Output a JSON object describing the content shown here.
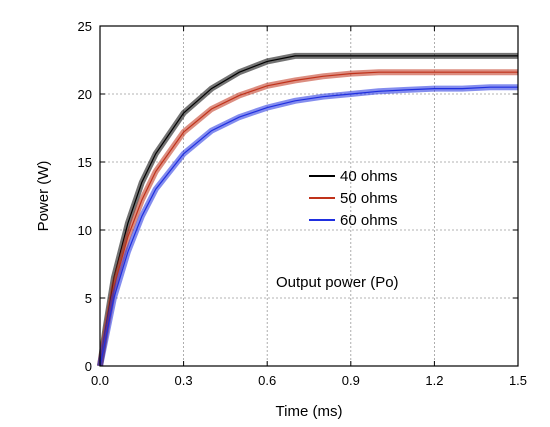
{
  "chart_data": {
    "type": "line",
    "title": "",
    "xlabel": "Time (ms)",
    "ylabel": "Power (W)",
    "xlim": [
      0,
      1.5
    ],
    "ylim": [
      0,
      25
    ],
    "xticks": [
      "0.0",
      "0.3",
      "0.6",
      "0.9",
      "1.2",
      "1.5"
    ],
    "yticks": [
      "0",
      "5",
      "10",
      "15",
      "20",
      "25"
    ],
    "grid": true,
    "legend_position": "center-right",
    "annotation": "Output power (Po)",
    "series": [
      {
        "name": "40 ohms",
        "color": "#000000",
        "x": [
          0.0,
          0.02,
          0.05,
          0.1,
          0.15,
          0.2,
          0.3,
          0.4,
          0.5,
          0.6,
          0.7,
          0.8,
          0.9,
          1.0,
          1.1,
          1.2,
          1.3,
          1.4,
          1.5
        ],
        "values": [
          0,
          2.8,
          6.5,
          10.5,
          13.5,
          15.6,
          18.6,
          20.4,
          21.6,
          22.4,
          22.8,
          22.8,
          22.8,
          22.8,
          22.8,
          22.8,
          22.8,
          22.8,
          22.8
        ]
      },
      {
        "name": "50 ohms",
        "color": "#c0321a",
        "x": [
          0.0,
          0.02,
          0.05,
          0.1,
          0.15,
          0.2,
          0.3,
          0.4,
          0.5,
          0.6,
          0.7,
          0.8,
          0.9,
          1.0,
          1.1,
          1.2,
          1.3,
          1.4,
          1.5
        ],
        "values": [
          0,
          2.4,
          5.8,
          9.5,
          12.2,
          14.3,
          17.2,
          18.9,
          19.9,
          20.6,
          21.0,
          21.3,
          21.5,
          21.6,
          21.6,
          21.6,
          21.6,
          21.6,
          21.6
        ]
      },
      {
        "name": "60 ohms",
        "color": "#1f2fe0",
        "x": [
          0.0,
          0.02,
          0.05,
          0.1,
          0.15,
          0.2,
          0.3,
          0.4,
          0.5,
          0.6,
          0.7,
          0.8,
          0.9,
          1.0,
          1.1,
          1.2,
          1.3,
          1.4,
          1.5
        ],
        "values": [
          0,
          2.0,
          5.0,
          8.4,
          11.0,
          13.0,
          15.6,
          17.3,
          18.3,
          19.0,
          19.5,
          19.8,
          20.0,
          20.2,
          20.3,
          20.4,
          20.4,
          20.5,
          20.5
        ]
      }
    ]
  }
}
